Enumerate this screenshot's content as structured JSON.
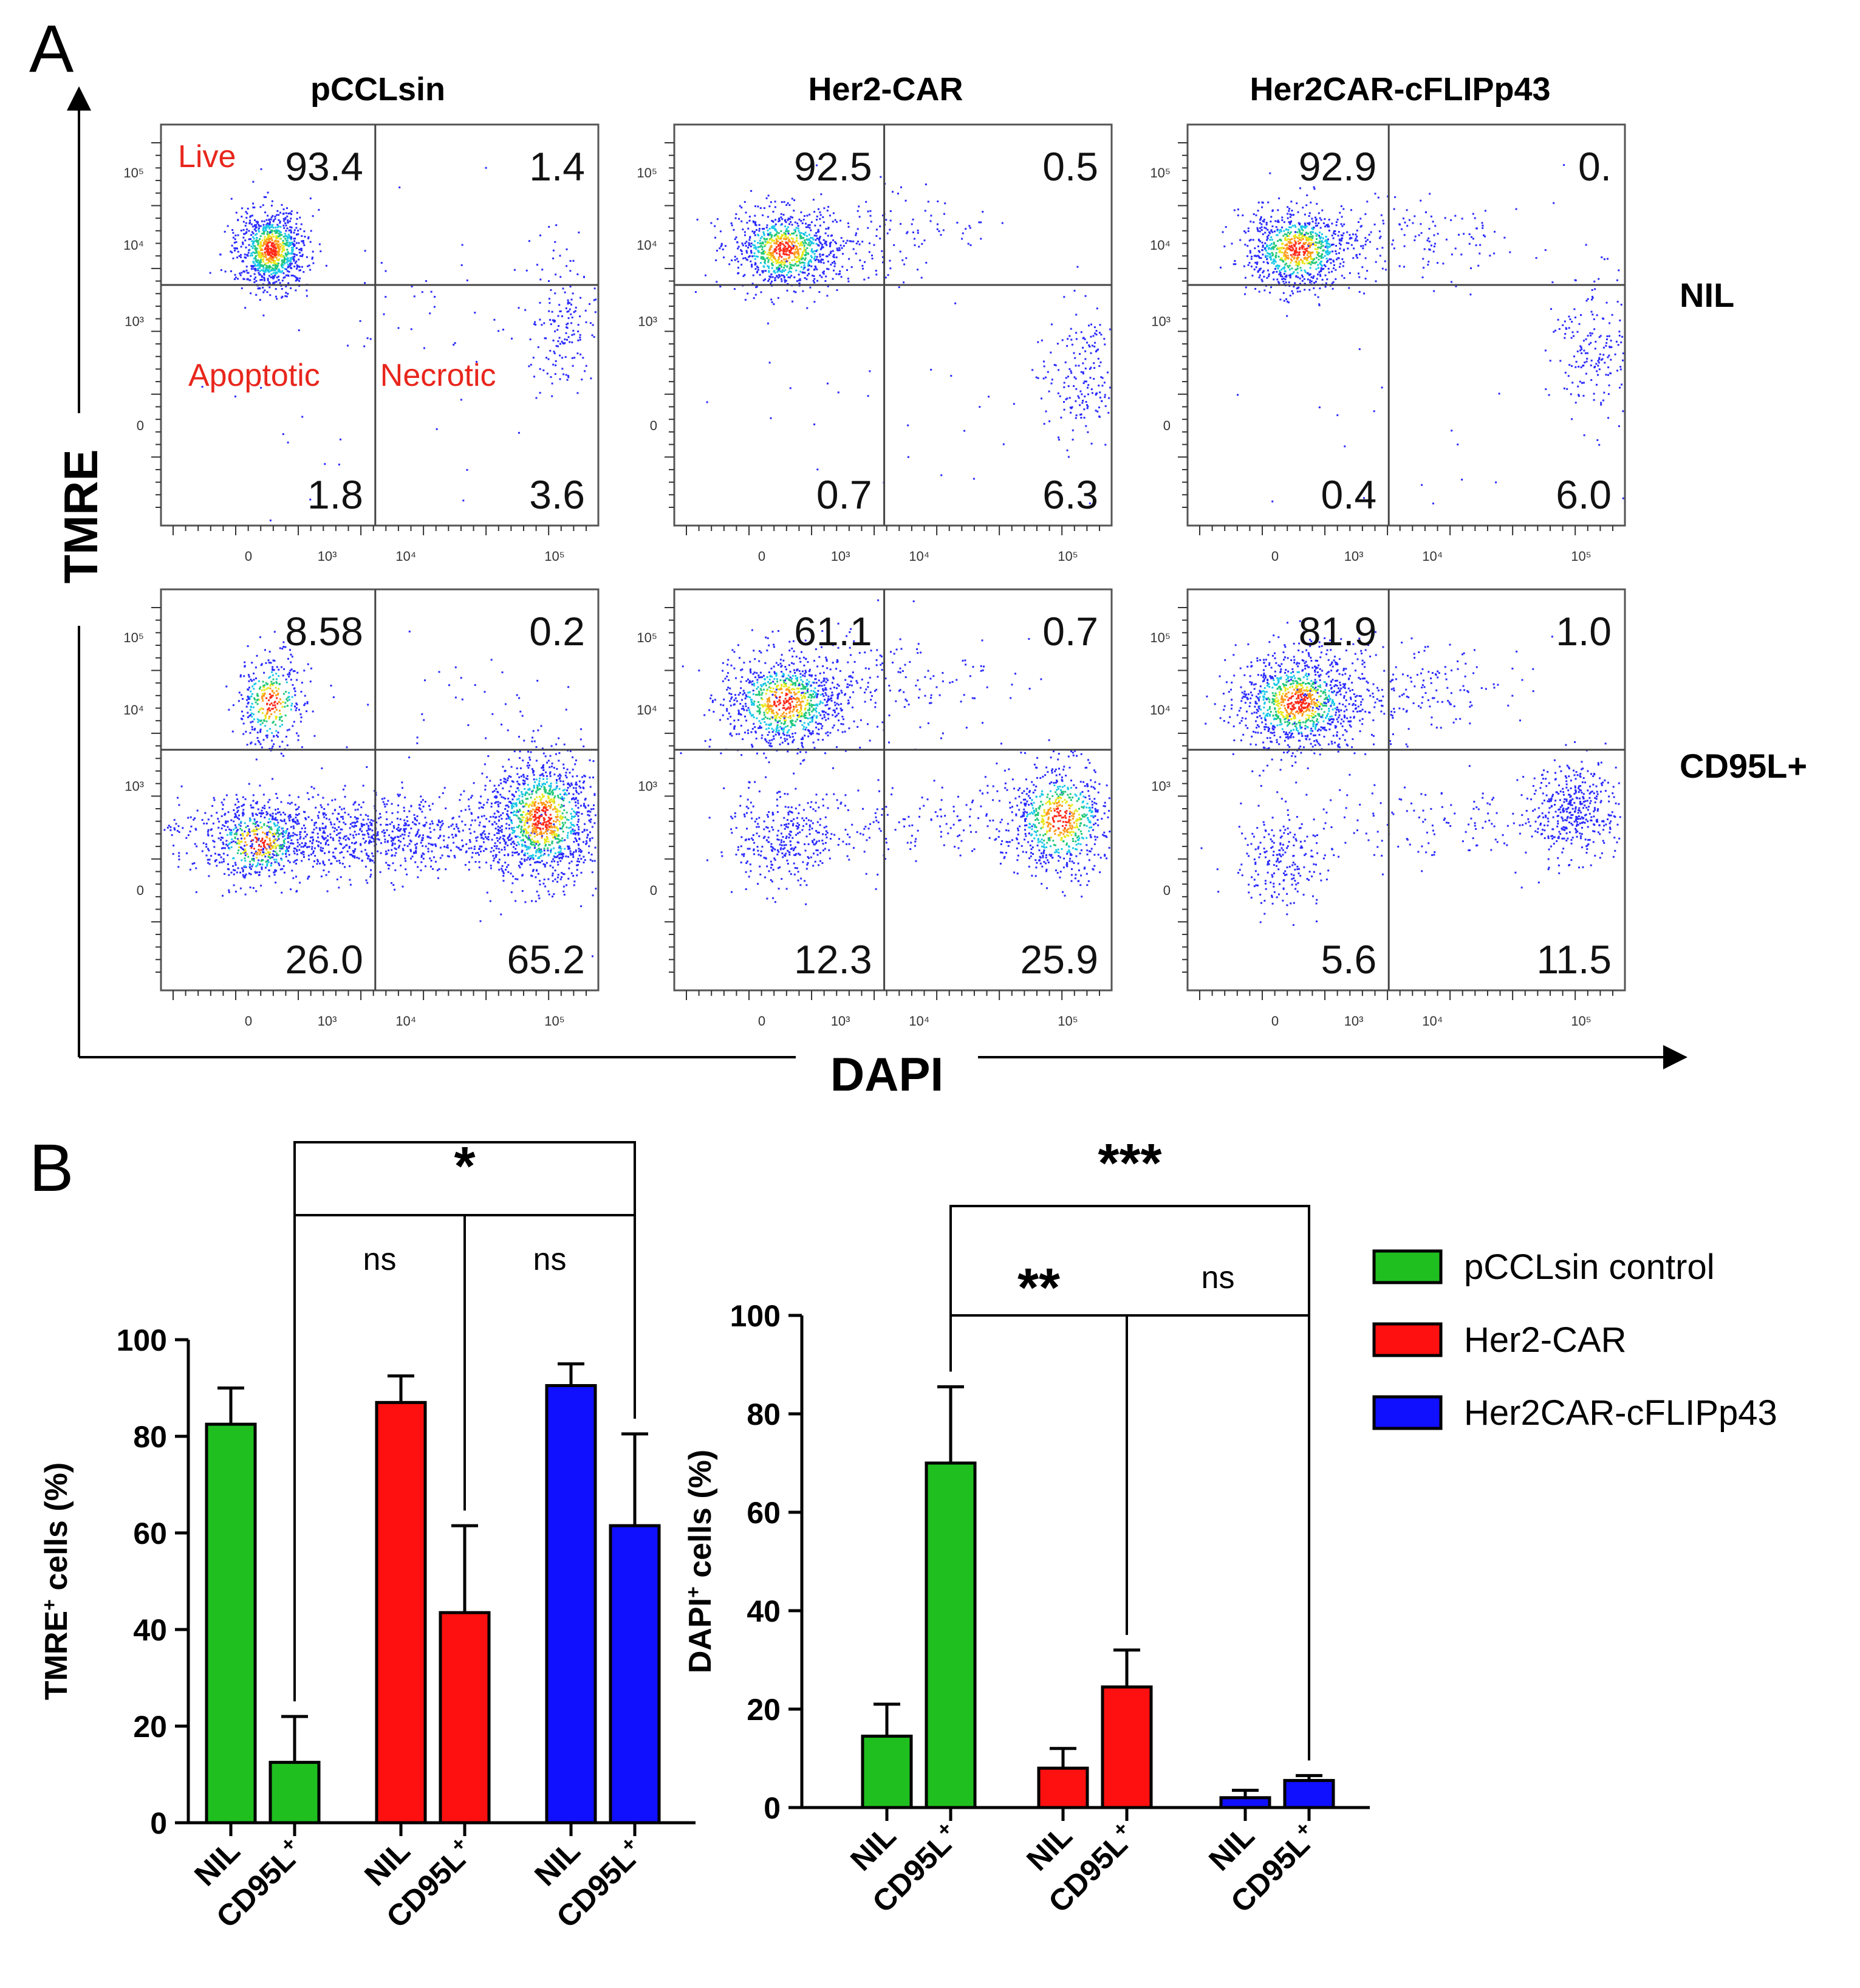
{
  "figure": {
    "panel_a_letter": "A",
    "panel_b_letter": "B"
  },
  "panel_a": {
    "y_axis_label": "TMRE",
    "x_axis_label": "DAPI",
    "columns": [
      "pCCLsin",
      "Her2-CAR",
      "Her2CAR-cFLIPp43"
    ],
    "rows": [
      "NIL",
      "CD95L+"
    ],
    "gate_labels": {
      "live": "Live",
      "apoptotic": "Apoptotic",
      "necrotic": "Necrotic"
    },
    "gate_label_color": "#e8261c",
    "y_ticks": [
      "10⁵",
      "10⁴",
      "10³",
      "0"
    ],
    "x_ticks": [
      "0",
      "10³",
      "10⁴",
      "10⁵"
    ],
    "plots": [
      {
        "row": 0,
        "col": 0,
        "ul": "93.4",
        "ur": "1.4",
        "ll": "1.8",
        "lr": "3.6",
        "show_gate_labels": true
      },
      {
        "row": 0,
        "col": 1,
        "ul": "92.5",
        "ur": "0.5",
        "ll": "0.7",
        "lr": "6.3",
        "show_gate_labels": false
      },
      {
        "row": 0,
        "col": 2,
        "ul": "92.9",
        "ur": "0.",
        "ll": "0.4",
        "lr": "6.0",
        "show_gate_labels": false
      },
      {
        "row": 1,
        "col": 0,
        "ul": "8.58",
        "ur": "0.2",
        "ll": "26.0",
        "lr": "65.2",
        "show_gate_labels": false
      },
      {
        "row": 1,
        "col": 1,
        "ul": "61.1",
        "ur": "0.7",
        "ll": "12.3",
        "lr": "25.9",
        "show_gate_labels": false
      },
      {
        "row": 1,
        "col": 2,
        "ul": "81.9",
        "ur": "1.0",
        "ll": "5.6",
        "lr": "11.5",
        "show_gate_labels": false
      }
    ]
  },
  "chart_data": [
    {
      "type": "bar",
      "ylabel_main": "TMRE",
      "ylabel_sup": "+",
      "ylabel_rest": " cells (%)",
      "ylim": [
        0,
        100
      ],
      "yticks": [
        0,
        20,
        40,
        60,
        80,
        100
      ],
      "categories": [
        "NIL",
        "CD95L",
        "NIL",
        "CD95L",
        "NIL",
        "CD95L"
      ],
      "category_sup": [
        "",
        "+",
        "",
        "+",
        "",
        "+"
      ],
      "values": [
        82.5,
        12.5,
        87,
        43.5,
        90.5,
        61.5
      ],
      "errors": [
        7.5,
        9.5,
        5.5,
        18,
        4.5,
        19
      ],
      "groups": [
        0,
        0,
        1,
        1,
        2,
        2
      ],
      "significance": [
        {
          "from": 1,
          "to": 3,
          "label": "ns",
          "level": "low"
        },
        {
          "from": 3,
          "to": 5,
          "label": "ns",
          "level": "low"
        },
        {
          "from": 1,
          "to": 5,
          "label": "*",
          "level": "high"
        }
      ]
    },
    {
      "type": "bar",
      "ylabel_main": "DAPI",
      "ylabel_sup": "+",
      "ylabel_rest": " cells (%)",
      "ylim": [
        0,
        100
      ],
      "yticks": [
        0,
        20,
        40,
        60,
        80,
        100
      ],
      "categories": [
        "NIL",
        "CD95L",
        "NIL",
        "CD95L",
        "NIL",
        "CD95L"
      ],
      "category_sup": [
        "",
        "+",
        "",
        "+",
        "",
        "+"
      ],
      "values": [
        14.5,
        70,
        8,
        24.5,
        2,
        5.5
      ],
      "errors": [
        6.5,
        15.5,
        4,
        7.5,
        1.5,
        1
      ],
      "groups": [
        0,
        0,
        1,
        1,
        2,
        2
      ],
      "significance": [
        {
          "from": 1,
          "to": 3,
          "label": "**",
          "level": "low"
        },
        {
          "from": 3,
          "to": 5,
          "label": "ns",
          "level": "low"
        },
        {
          "from": 1,
          "to": 5,
          "label": "***",
          "level": "high"
        }
      ]
    }
  ],
  "legend": [
    {
      "label": "pCCLsin control",
      "color": "#1fbf1f"
    },
    {
      "label": "Her2-CAR",
      "color": "#ff1010"
    },
    {
      "label": "Her2CAR-cFLIPp43",
      "color": "#1010ff"
    }
  ],
  "legend_placement": "right"
}
